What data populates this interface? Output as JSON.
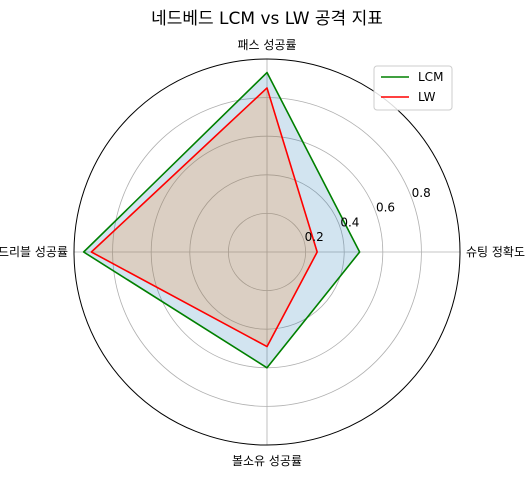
{
  "chart_data": {
    "type": "radar",
    "title": "네드베드 LCM vs LW 공격 지표",
    "categories": [
      "슈팅 정확도",
      "패스 성공률",
      "드리블 성공률",
      "볼소유 성공률"
    ],
    "rlim": [
      0,
      1
    ],
    "rticks": [
      0.2,
      0.4,
      0.6,
      0.8
    ],
    "rtick_labels": [
      "0.2",
      "0.4",
      "0.6",
      "0.8"
    ],
    "grid": true,
    "legend": "top-right",
    "series": [
      {
        "name": "LCM",
        "values": [
          0.48,
          0.93,
          0.95,
          0.6
        ],
        "color": "#008000",
        "fill": "#1f77b4",
        "fill_opacity": 0.2
      },
      {
        "name": "LW",
        "values": [
          0.26,
          0.85,
          0.91,
          0.49
        ],
        "color": "#ff0000",
        "fill": "#ff7f0e",
        "fill_opacity": 0.2
      }
    ]
  }
}
